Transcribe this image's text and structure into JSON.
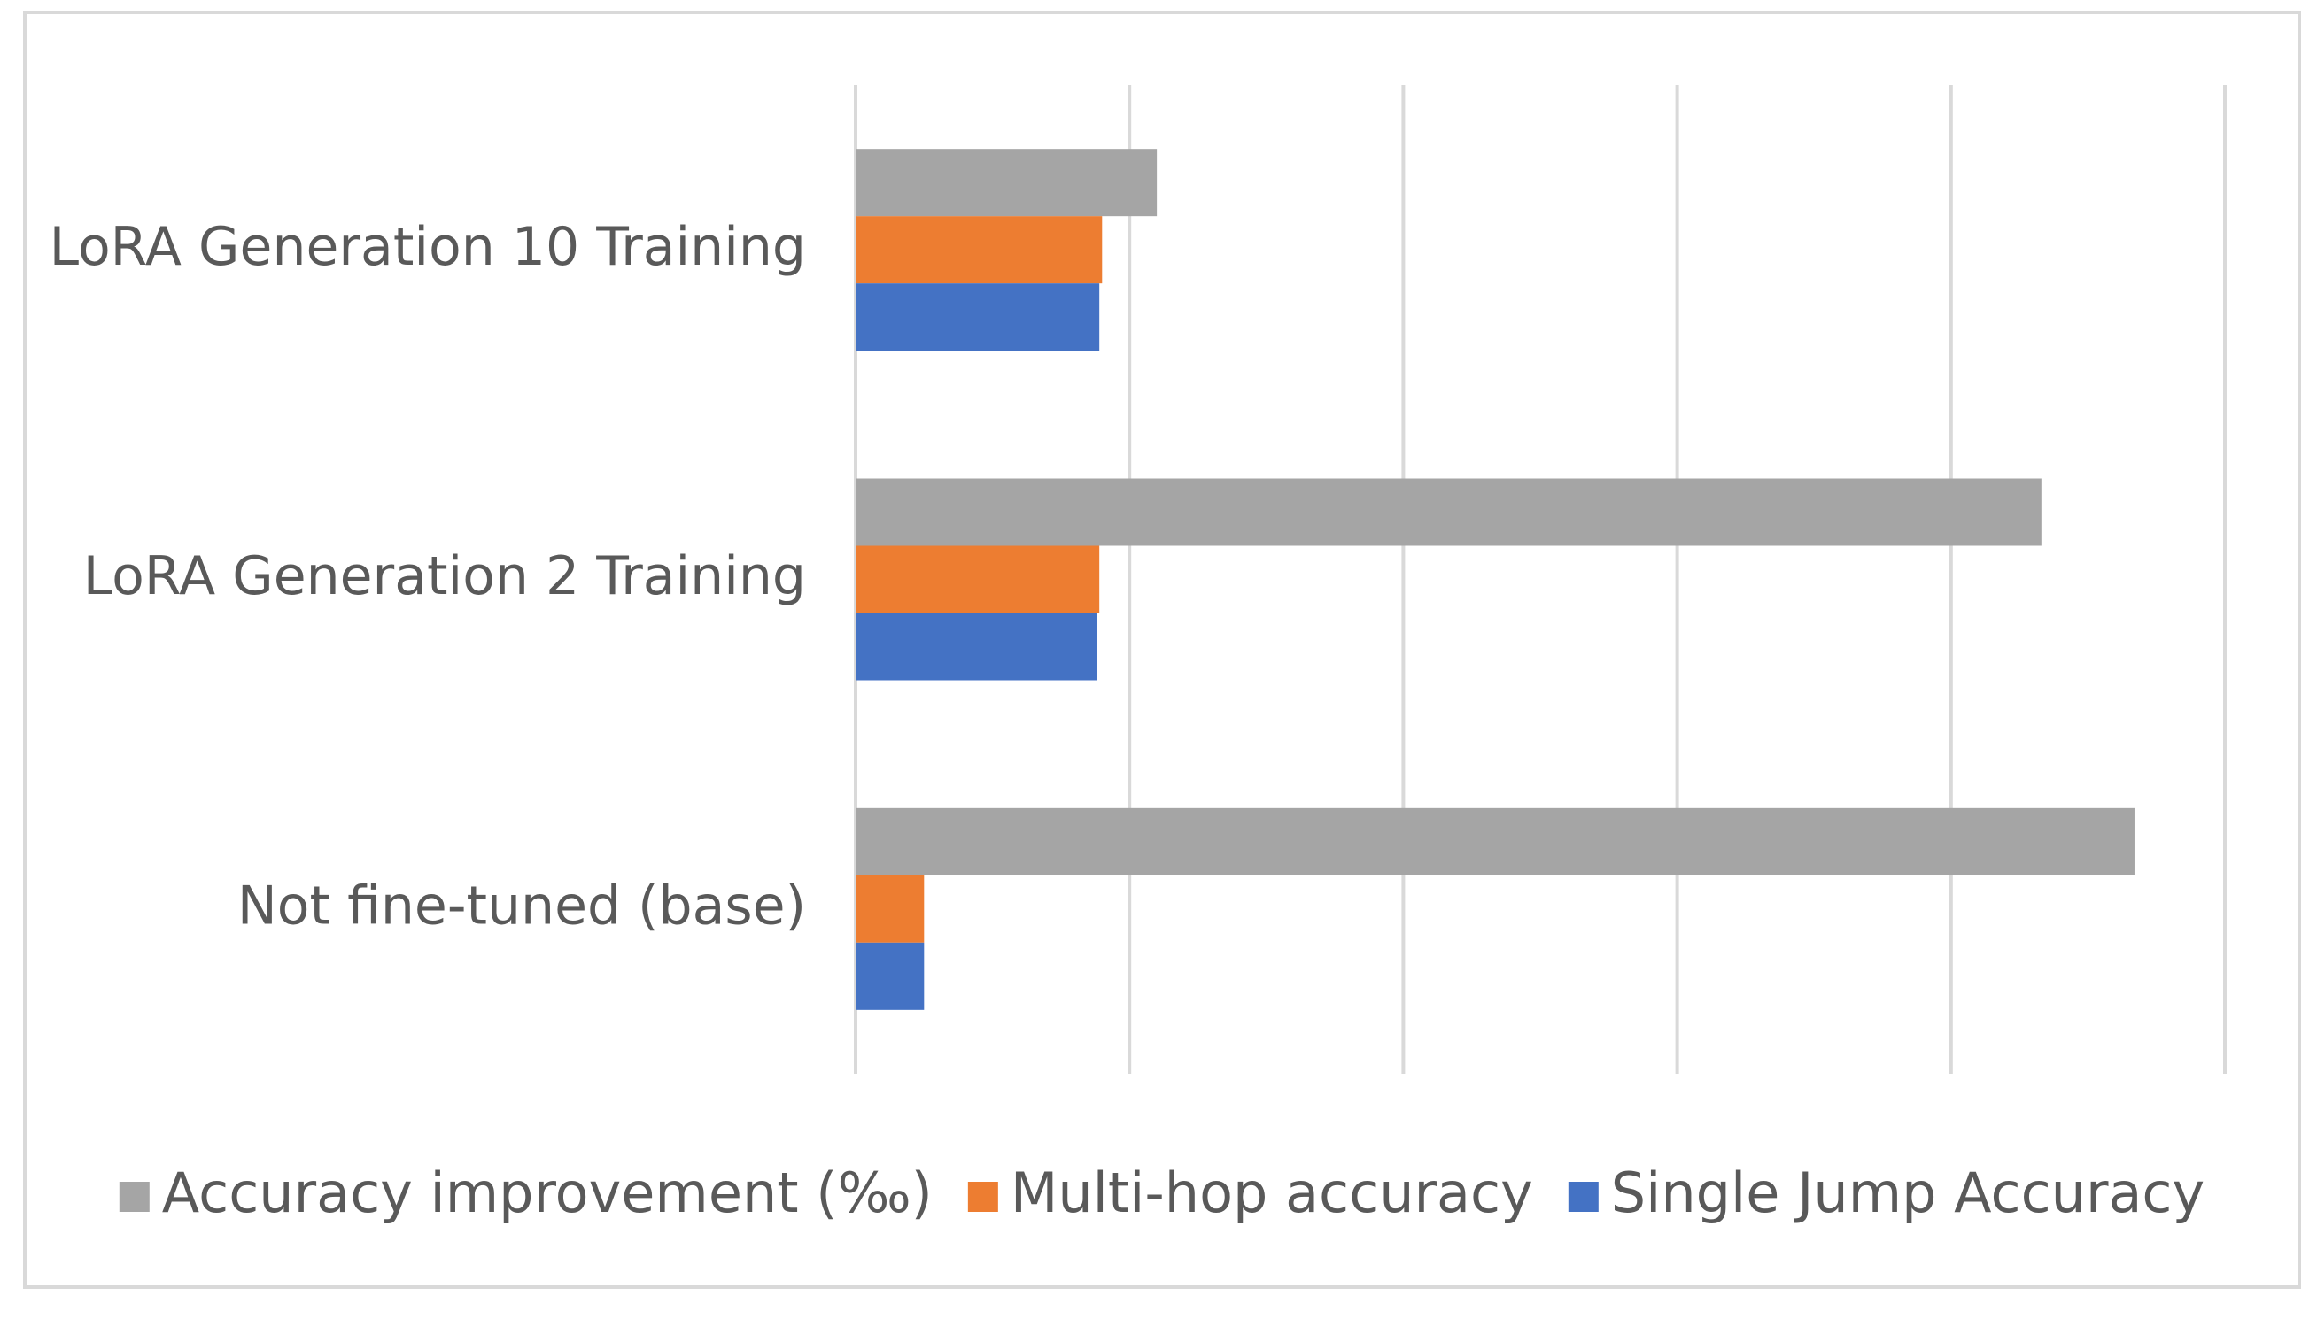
{
  "chart_data": {
    "type": "bar",
    "orientation": "horizontal",
    "categories": [
      "LoRA Generation 10 Training",
      "LoRA Generation 2 Training",
      "Not fine-tuned (base)"
    ],
    "series": [
      {
        "name": "Accuracy improvement (‰)",
        "color": "#a5a5a5",
        "values": [
          1.1,
          4.33,
          4.67
        ]
      },
      {
        "name": "Multi-hop accuracy",
        "color": "#ed7d31",
        "values": [
          0.9,
          0.89,
          0.25
        ]
      },
      {
        "name": "Single Jump Accuracy",
        "color": "#4472c4",
        "values": [
          0.89,
          0.88,
          0.25
        ]
      }
    ],
    "xlim": [
      0,
      5
    ],
    "xticks": [
      0,
      1,
      2,
      3,
      4,
      5
    ],
    "tick_labels_visible": false,
    "grid": "vertical",
    "legend": "bottom",
    "title": "",
    "xlabel": "",
    "ylabel": ""
  }
}
